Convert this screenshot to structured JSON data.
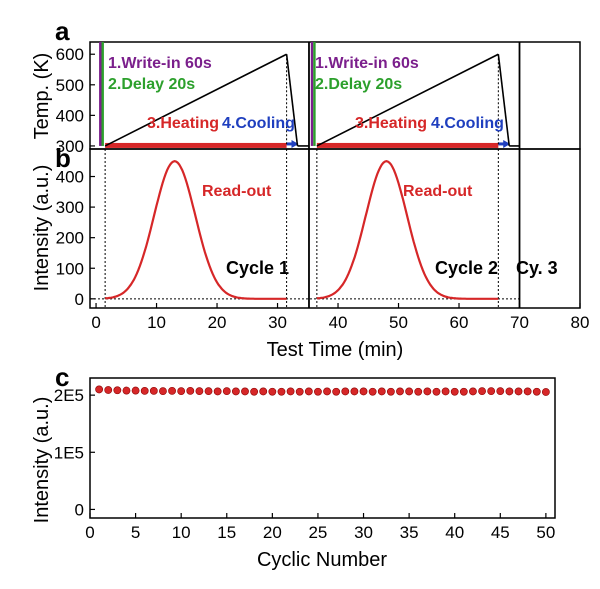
{
  "chart_data": [
    {
      "panel": "a",
      "type": "line",
      "ylabel": "Temp. (K)",
      "ylim": [
        290,
        640
      ],
      "xlim": [
        -1,
        80
      ],
      "yticks": [
        300,
        400,
        500,
        600
      ],
      "series": [
        {
          "color": "#000000",
          "x": [
            1.5,
            31.5,
            33.3,
            35.2,
            36.5,
            66.5,
            68.3,
            70.0
          ],
          "y": [
            300,
            600,
            300,
            300,
            300,
            600,
            300,
            300
          ]
        }
      ],
      "write_bars": [
        {
          "x": [
            0.5,
            0.9
          ],
          "color": "#7b1f8c"
        },
        {
          "x": [
            0.9,
            1.3
          ],
          "color": "#2ca02c"
        },
        {
          "x": [
            35.5,
            35.9
          ],
          "color": "#7b1f8c"
        },
        {
          "x": [
            35.9,
            36.3
          ],
          "color": "#2ca02c"
        }
      ],
      "heat_bars": [
        {
          "x": [
            1.5,
            31.5
          ],
          "color": "#d62728"
        },
        {
          "x": [
            36.5,
            66.5
          ],
          "color": "#d62728"
        }
      ],
      "cool_bars": [
        {
          "x": [
            31.5,
            33.3
          ],
          "color": "#1f3fbf"
        },
        {
          "x": [
            66.5,
            68.3
          ],
          "color": "#1f3fbf"
        }
      ],
      "annotations": [
        {
          "text": "1.Write-in 60s",
          "color": "#7b1f8c"
        },
        {
          "text": "2.Delay 20s",
          "color": "#2ca02c"
        },
        {
          "text": "3.Heating",
          "color": "#d62728"
        },
        {
          "text": "4.Cooling",
          "color": "#1f3fbf"
        },
        {
          "text": "1.Write-in 60s",
          "color": "#7b1f8c"
        },
        {
          "text": "2.Delay 20s",
          "color": "#2ca02c"
        },
        {
          "text": "3.Heating",
          "color": "#d62728"
        },
        {
          "text": "4.Cooling",
          "color": "#1f3fbf"
        }
      ]
    },
    {
      "panel": "b",
      "type": "line",
      "ylabel": "Intensity (a.u.)",
      "xlabel": "Test Time (min)",
      "xlim": [
        -1,
        80
      ],
      "ylim": [
        -30,
        490
      ],
      "xticks": [
        0,
        10,
        20,
        30,
        40,
        50,
        60,
        70,
        80
      ],
      "yticks": [
        0,
        100,
        200,
        300,
        400
      ],
      "series": [
        {
          "color": "#d62728",
          "peak_x": 13,
          "peak_y": 450,
          "sigma": 3.4,
          "x_range": [
            1.5,
            31.5
          ]
        },
        {
          "color": "#d62728",
          "peak_x": 48,
          "peak_y": 450,
          "sigma": 3.4,
          "x_range": [
            36.5,
            66.5
          ]
        }
      ],
      "cycle_separators_x": [
        35.2,
        70.0
      ],
      "dotted_x": [
        1.5,
        31.5,
        36.5,
        66.5
      ],
      "annotations": [
        {
          "text": "Read-out",
          "color": "#d62728"
        },
        {
          "text": "Read-out",
          "color": "#d62728"
        },
        {
          "text": "Cycle 1",
          "color": "#000000"
        },
        {
          "text": "Cycle 2",
          "color": "#000000"
        },
        {
          "text": "Cy. 3",
          "color": "#000000"
        }
      ]
    },
    {
      "panel": "c",
      "type": "scatter",
      "xlabel": "Cyclic Number",
      "ylabel": "Intensity (a.u.)",
      "xlim": [
        0,
        51
      ],
      "ylim": [
        -15000,
        230000
      ],
      "xticks": [
        0,
        5,
        10,
        15,
        20,
        25,
        30,
        35,
        40,
        45,
        50
      ],
      "yticks": [
        {
          "v": 0,
          "label": "0"
        },
        {
          "v": 100000,
          "label": "1E5"
        },
        {
          "v": 200000,
          "label": "2E5"
        }
      ],
      "series": [
        {
          "color": "#d62728",
          "x": [
            1,
            2,
            3,
            4,
            5,
            6,
            7,
            8,
            9,
            10,
            11,
            12,
            13,
            14,
            15,
            16,
            17,
            18,
            19,
            20,
            21,
            22,
            23,
            24,
            25,
            26,
            27,
            28,
            29,
            30,
            31,
            32,
            33,
            34,
            35,
            36,
            37,
            38,
            39,
            40,
            41,
            42,
            43,
            44,
            45,
            46,
            47,
            48,
            49,
            50
          ],
          "y": [
            210000,
            209000,
            208500,
            208000,
            208000,
            207500,
            207500,
            207000,
            207500,
            207000,
            207500,
            207000,
            207000,
            206500,
            207000,
            206500,
            206500,
            206000,
            206500,
            206000,
            206000,
            206500,
            206000,
            206500,
            206000,
            206500,
            206000,
            206500,
            206500,
            206500,
            206000,
            206500,
            206000,
            206500,
            206500,
            206000,
            206500,
            206000,
            206500,
            206000,
            206000,
            206500,
            207000,
            207000,
            207000,
            206500,
            206500,
            206500,
            206000,
            205500
          ]
        }
      ]
    }
  ]
}
